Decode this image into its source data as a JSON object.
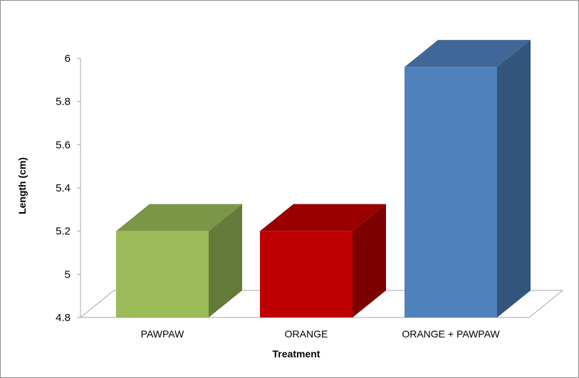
{
  "chart_data": {
    "type": "bar",
    "categories": [
      "PAWPAW",
      "ORANGE",
      "ORANGE + PAWPAW"
    ],
    "values": [
      5.2,
      5.2,
      5.96
    ],
    "colors": [
      "#9BBB59",
      "#C00000",
      "#4F81BD"
    ],
    "xlabel": "Treatment",
    "ylabel": "Length (cm)",
    "ylim": [
      4.8,
      6
    ],
    "yticks": [
      "4.8",
      "5",
      "5.2",
      "5.4",
      "5.6",
      "5.8",
      "6"
    ],
    "style": "3d-column",
    "grid": false,
    "legend": "none"
  }
}
